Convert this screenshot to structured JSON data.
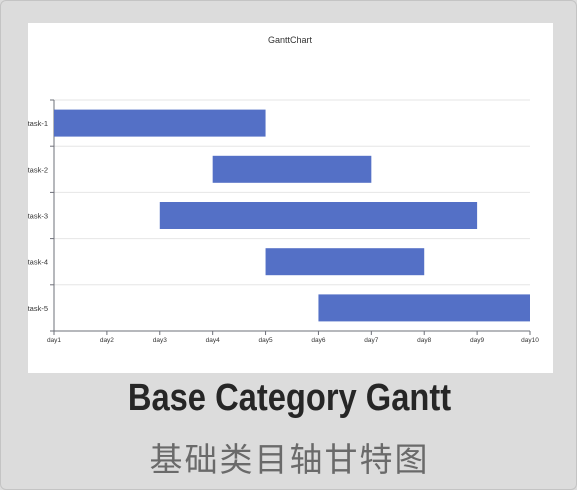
{
  "caption": {
    "title_en": "Base Category Gantt",
    "title_zh": "基础类目轴甘特图"
  },
  "colors": {
    "bar": "#5470c6",
    "axis": "#6e7079",
    "split_line": "#e6e6e6",
    "text": "#333333"
  },
  "chart_data": {
    "type": "bar",
    "subtype": "gantt",
    "title": "GanttChart",
    "x_axis": {
      "type": "category",
      "categories": [
        "day1",
        "day2",
        "day3",
        "day4",
        "day5",
        "day6",
        "day7",
        "day8",
        "day9",
        "day10"
      ]
    },
    "y_axis": {
      "type": "category",
      "categories": [
        "task-1",
        "task-2",
        "task-3",
        "task-4",
        "task-5"
      ]
    },
    "tasks": [
      {
        "name": "task-1",
        "start": "day1",
        "end": "day5"
      },
      {
        "name": "task-2",
        "start": "day4",
        "end": "day7"
      },
      {
        "name": "task-3",
        "start": "day3",
        "end": "day9"
      },
      {
        "name": "task-4",
        "start": "day5",
        "end": "day8"
      },
      {
        "name": "task-5",
        "start": "day6",
        "end": "day10"
      }
    ],
    "grid": true,
    "legend": "none"
  }
}
